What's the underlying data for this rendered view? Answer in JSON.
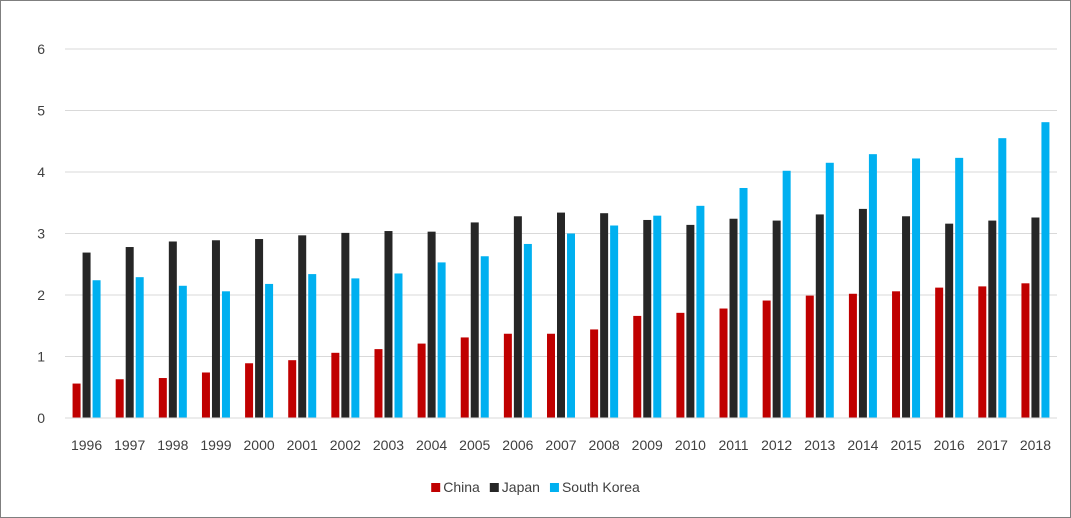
{
  "chart_data": {
    "type": "bar",
    "categories": [
      "1996",
      "1997",
      "1998",
      "1999",
      "2000",
      "2001",
      "2002",
      "2003",
      "2004",
      "2005",
      "2006",
      "2007",
      "2008",
      "2009",
      "2010",
      "2011",
      "2012",
      "2013",
      "2014",
      "2015",
      "2016",
      "2017",
      "2018"
    ],
    "series": [
      {
        "name": "China",
        "color": "#c00000",
        "values": [
          0.56,
          0.63,
          0.65,
          0.74,
          0.89,
          0.94,
          1.06,
          1.12,
          1.21,
          1.31,
          1.37,
          1.37,
          1.44,
          1.66,
          1.71,
          1.78,
          1.91,
          1.99,
          2.02,
          2.06,
          2.12,
          2.14,
          2.19
        ]
      },
      {
        "name": "Japan",
        "color": "#262626",
        "values": [
          2.69,
          2.78,
          2.87,
          2.89,
          2.91,
          2.97,
          3.01,
          3.04,
          3.03,
          3.18,
          3.28,
          3.34,
          3.33,
          3.22,
          3.14,
          3.24,
          3.21,
          3.31,
          3.4,
          3.28,
          3.16,
          3.21,
          3.26
        ]
      },
      {
        "name": "South Korea",
        "color": "#00b0f0",
        "values": [
          2.24,
          2.29,
          2.15,
          2.06,
          2.18,
          2.34,
          2.27,
          2.35,
          2.53,
          2.63,
          2.83,
          3.0,
          3.13,
          3.29,
          3.45,
          3.74,
          4.02,
          4.15,
          4.29,
          4.22,
          4.23,
          4.55,
          4.81
        ]
      }
    ],
    "ylim": [
      0,
      6
    ],
    "yticks": [
      "0",
      "1",
      "2",
      "3",
      "4",
      "5",
      "6"
    ],
    "grid": true,
    "legend_position": "bottom"
  }
}
